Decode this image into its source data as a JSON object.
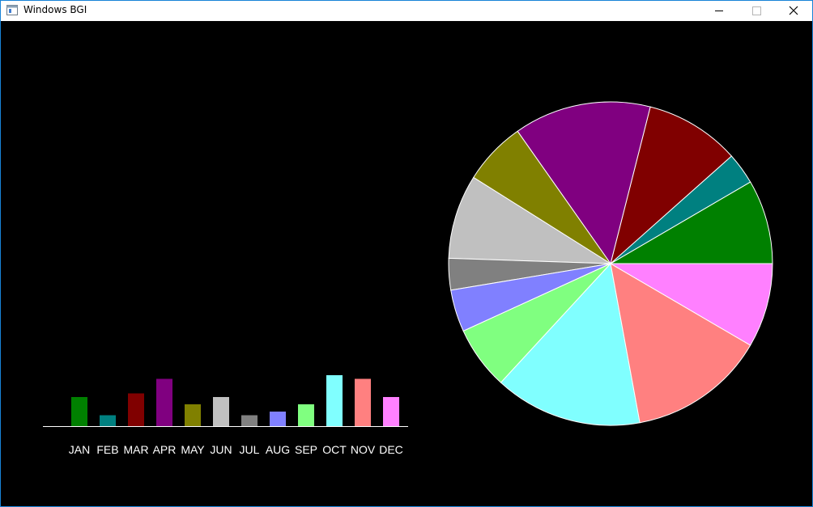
{
  "window": {
    "title": "Windows BGI",
    "icon": "app-window-icon",
    "controls": [
      "minimize-icon",
      "maximize-icon",
      "close-icon"
    ]
  },
  "colors": {
    "background": "#000000",
    "axis": "#ffffff",
    "label": "#ffffff",
    "slice_border": "#ffffff"
  },
  "chart_data": [
    {
      "type": "bar",
      "categories": [
        "JAN",
        "FEB",
        "MAR",
        "APR",
        "MAY",
        "JUN",
        "JUL",
        "AUG",
        "SEP",
        "OCT",
        "NOV",
        "DEC"
      ],
      "values": [
        8,
        3,
        9,
        13,
        6,
        8,
        3,
        4,
        6,
        14,
        13,
        8
      ],
      "colors": [
        "#008000",
        "#008080",
        "#800000",
        "#800080",
        "#808000",
        "#c0c0c0",
        "#808080",
        "#8080ff",
        "#80ff80",
        "#80ffff",
        "#ff8080",
        "#ff80ff"
      ],
      "ylim": [
        0,
        14
      ]
    },
    {
      "type": "pie",
      "categories": [
        "JAN",
        "FEB",
        "MAR",
        "APR",
        "MAY",
        "JUN",
        "JUL",
        "AUG",
        "SEP",
        "OCT",
        "NOV",
        "DEC"
      ],
      "values": [
        8,
        3,
        9,
        13,
        6,
        8,
        3,
        4,
        6,
        14,
        13,
        8
      ],
      "colors": [
        "#008000",
        "#008080",
        "#800000",
        "#800080",
        "#808000",
        "#c0c0c0",
        "#808080",
        "#8080ff",
        "#80ff80",
        "#80ffff",
        "#ff8080",
        "#ff80ff"
      ]
    }
  ]
}
